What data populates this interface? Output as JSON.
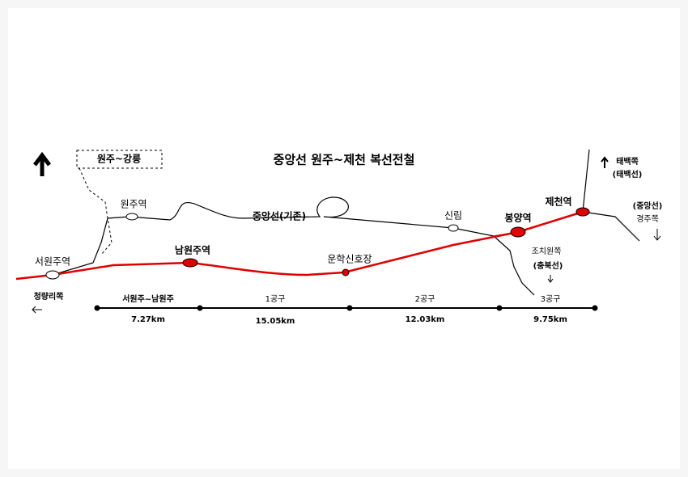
{
  "title": "중앙선 원주~제천 복선전철",
  "branch_box": "원주~강릉",
  "existing_line": "중앙선(기존)",
  "stations": {
    "wonju": "원주역",
    "seowonju": "서원주역",
    "namwonju": "남원주역",
    "unhak": "운학신호장",
    "sillim": "신림",
    "bongyang": "봉양역",
    "jecheon": "제천역"
  },
  "directions": {
    "cheongnyangni": "청량리쪽",
    "taebaek": "태백쪽",
    "taebaek_line": "(태백선)",
    "jungang_line": "(중앙선)",
    "gyeongju": "경주쪽",
    "jochiwon": "조치원쪽",
    "chungbuk_line": "(충북선)"
  },
  "sections": [
    {
      "name": "서원주~남원주",
      "length": "7.27km"
    },
    {
      "name": "1공구",
      "length": "15.05km"
    },
    {
      "name": "2공구",
      "length": "12.03km"
    },
    {
      "name": "3공구",
      "length": "9.75km"
    }
  ]
}
